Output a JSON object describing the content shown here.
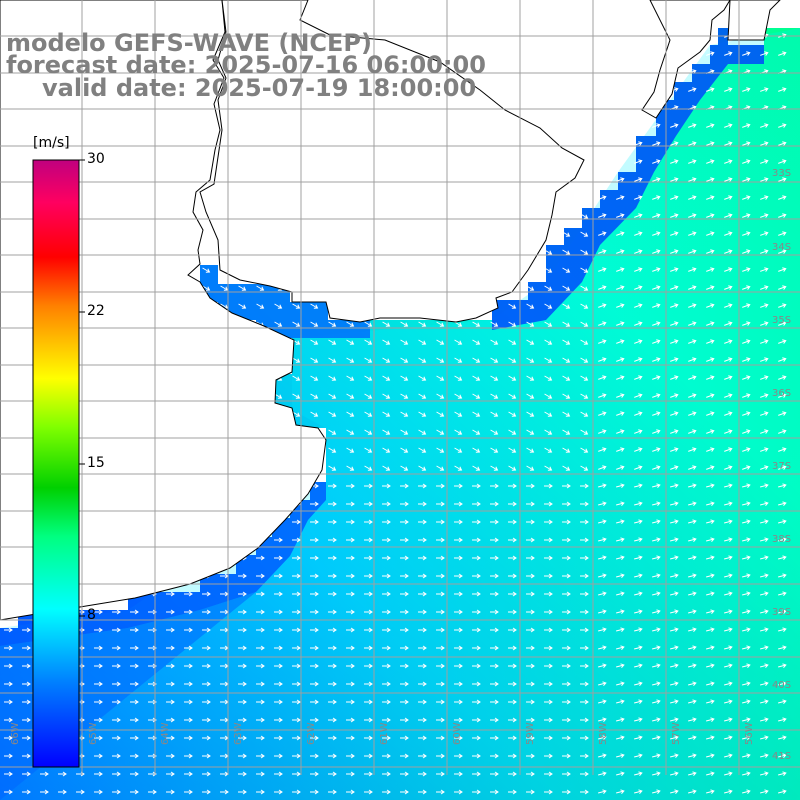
{
  "header": {
    "line1": "modelo GEFS-WAVE (NCEP)",
    "line2": "forecast date: 2025-07-16 06:00:00",
    "line3": "valid date: 2025-07-19 18:00:00"
  },
  "colorbar": {
    "unit": "[m/s]",
    "min": 0,
    "max": 30,
    "ticks": [
      "30",
      "22",
      "15",
      "8"
    ],
    "colors": [
      "#0000ff",
      "#0080ff",
      "#00e0ff",
      "#00ff80",
      "#00d000",
      "#80ff00",
      "#ffff00",
      "#ff8000",
      "#ff0000",
      "#ff0060",
      "#c0007f"
    ]
  },
  "map": {
    "ocean_low_color": "#0050ff",
    "ocean_mid_color": "#00ccff",
    "ocean_high_color": "#00f0a0",
    "land_color": "#ffffff",
    "coast_color": "#000000",
    "grid_color": "#a0a0a0",
    "lat_labels": [
      "33S",
      "34S",
      "35S",
      "36S",
      "37S",
      "38S",
      "39S",
      "40S",
      "41S"
    ],
    "lon_labels": [
      "66W",
      "65W",
      "64W",
      "63W",
      "62W",
      "61W",
      "60W",
      "59W",
      "58W",
      "57W",
      "56W"
    ]
  }
}
